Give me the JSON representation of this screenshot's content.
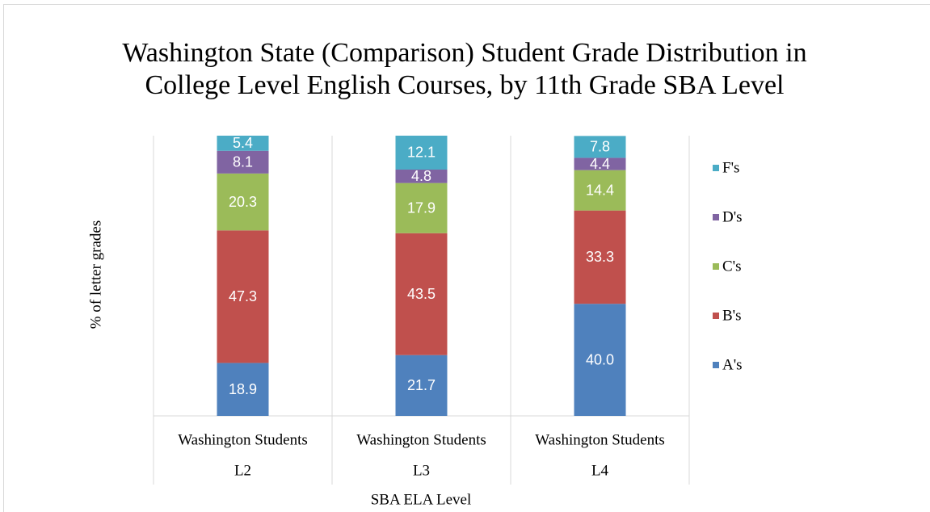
{
  "chart_data": {
    "type": "stacked_bar",
    "title": "Washington State (Comparison) Student Grade Distribution in College Level English Courses, by 11th Grade SBA Level",
    "y_label": "% of letter grades",
    "x_label": "SBA ELA Level",
    "categories": [
      "Washington Students",
      "Washington Students",
      "Washington Students"
    ],
    "category_groups": [
      "L2",
      "L3",
      "L4"
    ],
    "ylim": [
      0,
      100
    ],
    "legend": "right",
    "series": [
      {
        "name": "A's",
        "color": "#4f81bd",
        "values": [
          18.9,
          21.7,
          40.0
        ],
        "value_labels": [
          "18.9",
          "21.7",
          "40.0"
        ]
      },
      {
        "name": "B's",
        "color": "#c0504d",
        "values": [
          47.3,
          43.5,
          33.3
        ],
        "value_labels": [
          "47.3",
          "43.5",
          "33.3"
        ]
      },
      {
        "name": "C's",
        "color": "#9bbb59",
        "values": [
          20.3,
          17.9,
          14.4
        ],
        "value_labels": [
          "20.3",
          "17.9",
          "14.4"
        ]
      },
      {
        "name": "D's",
        "color": "#8064a2",
        "values": [
          8.1,
          4.8,
          4.4
        ],
        "value_labels": [
          "8.1",
          "4.8",
          "4.4"
        ]
      },
      {
        "name": "F's",
        "color": "#4bacc6",
        "values": [
          5.4,
          12.1,
          7.8
        ],
        "value_labels": [
          "5.4",
          "12.1",
          "7.8"
        ]
      }
    ]
  }
}
